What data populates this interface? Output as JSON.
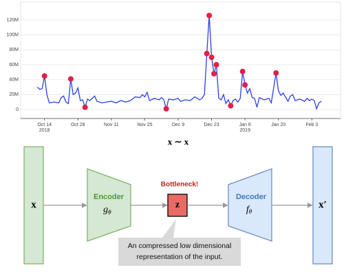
{
  "chart_data": {
    "type": "line",
    "xlim": [
      "2018-10-04",
      "2019-02-15"
    ],
    "ylim": [
      -12000000,
      144000000
    ],
    "xticks": [
      {
        "value": "2018-10-14",
        "label": [
          "Oct 14",
          "2018"
        ]
      },
      {
        "value": "2018-10-28",
        "label": [
          "Oct 28"
        ]
      },
      {
        "value": "2018-11-11",
        "label": [
          "Nov 11"
        ]
      },
      {
        "value": "2018-11-25",
        "label": [
          "Nov 25"
        ]
      },
      {
        "value": "2018-12-09",
        "label": [
          "Dec 9"
        ]
      },
      {
        "value": "2018-12-23",
        "label": [
          "Dec 23"
        ]
      },
      {
        "value": "2019-01-06",
        "label": [
          "Jan 6",
          "2019"
        ]
      },
      {
        "value": "2019-01-20",
        "label": [
          "Jan 20"
        ]
      },
      {
        "value": "2019-02-03",
        "label": [
          "Feb 3"
        ]
      }
    ],
    "yticks": [
      {
        "value": 0,
        "label": "0"
      },
      {
        "value": 20000000,
        "label": "20M"
      },
      {
        "value": 40000000,
        "label": "40M"
      },
      {
        "value": 60000000,
        "label": "60M"
      },
      {
        "value": 80000000,
        "label": "80M"
      },
      {
        "value": 100000000,
        "label": "100M"
      },
      {
        "value": 120000000,
        "label": "120M"
      }
    ],
    "grid": true,
    "series": [
      {
        "mode": "lines",
        "color": "#2a3fe6",
        "x": [
          "2018-10-11",
          "2018-10-12",
          "2018-10-13",
          "2018-10-14",
          "2018-10-15",
          "2018-10-16",
          "2018-10-18",
          "2018-10-20",
          "2018-10-21",
          "2018-10-22",
          "2018-10-23",
          "2018-10-24",
          "2018-10-25",
          "2018-10-26",
          "2018-10-27",
          "2018-10-28",
          "2018-10-29",
          "2018-10-30",
          "2018-10-31",
          "2018-11-01",
          "2018-11-02",
          "2018-11-04",
          "2018-11-05",
          "2018-11-07",
          "2018-11-09",
          "2018-11-11",
          "2018-11-13",
          "2018-11-15",
          "2018-11-17",
          "2018-11-19",
          "2018-11-21",
          "2018-11-23",
          "2018-11-24",
          "2018-11-25",
          "2018-11-26",
          "2018-11-27",
          "2018-11-29",
          "2018-12-01",
          "2018-12-02",
          "2018-12-03",
          "2018-12-04",
          "2018-12-05",
          "2018-12-07",
          "2018-12-09",
          "2018-12-10",
          "2018-12-12",
          "2018-12-14",
          "2018-12-16",
          "2018-12-18",
          "2018-12-19",
          "2018-12-20",
          "2018-12-21",
          "2018-12-22",
          "2018-12-23",
          "2018-12-24",
          "2018-12-25",
          "2018-12-26",
          "2018-12-27",
          "2018-12-28",
          "2018-12-29",
          "2018-12-30",
          "2018-12-31",
          "2019-01-01",
          "2019-01-02",
          "2019-01-03",
          "2019-01-04",
          "2019-01-05",
          "2019-01-06",
          "2019-01-07",
          "2019-01-08",
          "2019-01-09",
          "2019-01-10",
          "2019-01-11",
          "2019-01-12",
          "2019-01-14",
          "2019-01-16",
          "2019-01-17",
          "2019-01-19",
          "2019-01-20",
          "2019-01-21",
          "2019-01-22",
          "2019-01-24",
          "2019-01-25",
          "2019-01-26",
          "2019-01-27",
          "2019-01-29",
          "2019-01-31",
          "2019-02-01",
          "2019-02-02",
          "2019-02-03",
          "2019-02-04",
          "2019-02-05",
          "2019-02-06",
          "2019-02-07"
        ],
        "values": [
          30000000,
          27000000,
          28000000,
          45000000,
          20000000,
          9000000,
          10000000,
          9000000,
          16000000,
          18000000,
          10000000,
          8000000,
          41000000,
          20000000,
          22000000,
          29000000,
          12000000,
          13000000,
          3000000,
          14000000,
          12000000,
          18000000,
          11000000,
          9000000,
          10000000,
          11000000,
          9000000,
          12000000,
          10000000,
          12000000,
          17000000,
          16000000,
          20000000,
          17000000,
          23000000,
          12000000,
          15000000,
          13000000,
          16000000,
          13000000,
          1000000,
          14000000,
          13000000,
          15000000,
          11000000,
          13000000,
          12000000,
          17000000,
          13000000,
          15000000,
          20000000,
          75000000,
          126000000,
          70000000,
          48000000,
          60000000,
          15000000,
          13000000,
          20000000,
          8000000,
          13000000,
          5000000,
          12000000,
          14000000,
          10000000,
          15000000,
          51000000,
          33000000,
          22000000,
          28000000,
          16000000,
          15000000,
          3000000,
          16000000,
          13000000,
          15000000,
          9000000,
          49000000,
          25000000,
          19000000,
          22000000,
          11000000,
          18000000,
          20000000,
          12000000,
          14000000,
          11000000,
          15000000,
          12000000,
          14000000,
          12000000,
          1000000,
          9000000,
          11000000
        ]
      },
      {
        "mode": "markers",
        "color": "#e0204a",
        "x": [
          "2018-10-14",
          "2018-10-25",
          "2018-10-31",
          "2018-12-04",
          "2018-12-21",
          "2018-12-22",
          "2018-12-23",
          "2018-12-24",
          "2018-12-25",
          "2018-12-31",
          "2019-01-05",
          "2019-01-06",
          "2019-01-19"
        ],
        "values": [
          45000000,
          41000000,
          3000000,
          1000000,
          75000000,
          126000000,
          70000000,
          48000000,
          60000000,
          5000000,
          51000000,
          33000000,
          49000000
        ]
      }
    ]
  },
  "caption": "x ∼ x",
  "diagram": {
    "input": "x",
    "encoder": {
      "label": "Encoder",
      "symbol": "g",
      "subscript": "ϕ"
    },
    "bottleneck": {
      "label": "Bottleneck!",
      "symbol": "z"
    },
    "decoder": {
      "label": "Decoder",
      "symbol": "f",
      "subscript": "θ"
    },
    "output": "x′",
    "note": [
      "An compressed low dimensional",
      "representation of the input."
    ]
  }
}
